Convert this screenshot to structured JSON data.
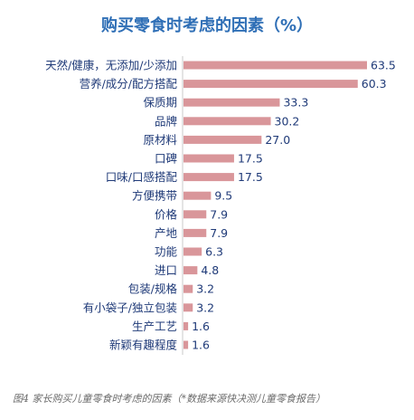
{
  "chart_data": {
    "type": "bar",
    "orientation": "horizontal",
    "title": "购买零食时考虑的因素（%）",
    "categories": [
      "天然/健康，无添加/少添加",
      "营养/成分/配方搭配",
      "保质期",
      "品牌",
      "原材料",
      "口碑",
      "口味/口感搭配",
      "方便携带",
      "价格",
      "产地",
      "功能",
      "进口",
      "包装/规格",
      "有小袋子/独立包装",
      "生产工艺",
      "新颖有趣程度"
    ],
    "values": [
      63.5,
      60.3,
      33.3,
      30.2,
      27.0,
      17.5,
      17.5,
      9.5,
      7.9,
      7.9,
      6.3,
      4.8,
      3.2,
      3.2,
      1.6,
      1.6
    ],
    "value_labels": [
      "63.5",
      "60.3",
      "33.3",
      "30.2",
      "27.0",
      "17.5",
      "17.5",
      "9.5",
      "7.9",
      "7.9",
      "6.3",
      "4.8",
      "3.2",
      "3.2",
      "1.6",
      "1.6"
    ],
    "xlim": [
      0,
      63.5
    ],
    "bar_color": "#d9969a",
    "text_color": "#1f3a78",
    "grid": false,
    "legend": "none"
  },
  "caption": "图4  家长购买儿童零食时考虑的因素（*数据来源快决测儿童零食报告）"
}
